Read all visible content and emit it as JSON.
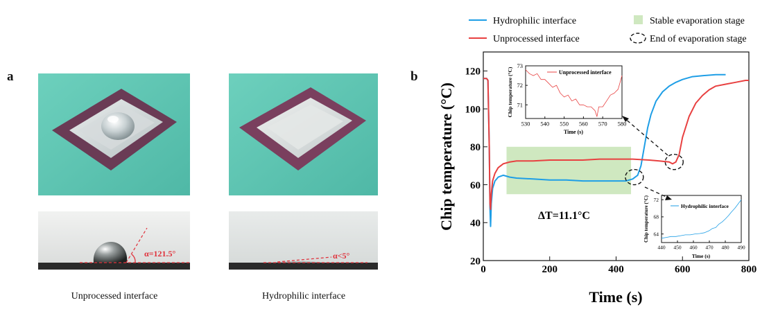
{
  "panel_a": {
    "letter": "a",
    "left_caption": "Unprocessed interface",
    "right_caption": "Hydrophilic interface",
    "left_angle_label": "α=121.5°",
    "right_angle_label": "α<5°",
    "colors": {
      "background_teal": "#5fc7b4",
      "chip_purple": "#6a3b55",
      "angle_red": "#e0303a"
    }
  },
  "panel_b": {
    "letter": "b",
    "delta_label": "ΔT=11.1°C",
    "colors": {
      "hydrophilic": "#1e9ee6",
      "unprocessed": "#e84040",
      "stable_fill": "#cfe8c0"
    }
  },
  "chart_data": [
    {
      "id": "main",
      "type": "line",
      "xlabel": "Time (s)",
      "ylabel": "Chip temperature (°C)",
      "xlim": [
        0,
        800
      ],
      "ylim": [
        20,
        130
      ],
      "xticks": [
        0,
        200,
        400,
        600,
        800
      ],
      "yticks": [
        20,
        40,
        60,
        80,
        100,
        120
      ],
      "legend": [
        {
          "label": "Hydrophilic interface",
          "kind": "line",
          "color": "#1e9ee6"
        },
        {
          "label": "Unprocessed interface",
          "kind": "line",
          "color": "#e84040"
        },
        {
          "label": "Stable evaporation stage",
          "kind": "patch",
          "color": "#cfe8c0"
        },
        {
          "label": "End of evaporation stage",
          "kind": "ellipse",
          "color": "#111111"
        }
      ],
      "stable_stage": {
        "x": [
          70,
          445
        ],
        "y": [
          55,
          80
        ]
      },
      "end_markers": [
        {
          "series": "Hydrophilic interface",
          "x": 455,
          "y": 64
        },
        {
          "series": "Unprocessed interface",
          "x": 575,
          "y": 72
        }
      ],
      "series": [
        {
          "name": "Hydrophilic interface",
          "color": "#1e9ee6",
          "x": [
            0,
            10,
            14,
            18,
            20,
            22,
            24,
            28,
            35,
            45,
            60,
            80,
            100,
            150,
            200,
            250,
            300,
            350,
            400,
            430,
            450,
            465,
            475,
            485,
            495,
            505,
            520,
            540,
            560,
            580,
            600,
            630,
            660,
            700,
            730
          ],
          "y": [
            116,
            116,
            115,
            80,
            48,
            38,
            50,
            58,
            62,
            64,
            65,
            64,
            63.5,
            63,
            62.5,
            62.5,
            62,
            62,
            62,
            62,
            63,
            65,
            70,
            80,
            90,
            97,
            104,
            109,
            112,
            114,
            115.5,
            117,
            117.5,
            118,
            118
          ]
        },
        {
          "name": "Unprocessed interface",
          "color": "#e84040",
          "x": [
            0,
            10,
            14,
            18,
            20,
            22,
            24,
            28,
            35,
            45,
            60,
            80,
            100,
            150,
            200,
            250,
            300,
            350,
            400,
            450,
            500,
            530,
            560,
            570,
            580,
            590,
            600,
            620,
            640,
            660,
            680,
            700,
            730,
            760,
            790,
            800
          ],
          "y": [
            116,
            116,
            115,
            80,
            50,
            47,
            55,
            62,
            66,
            69,
            71,
            72,
            72.5,
            72.5,
            73,
            73,
            73,
            73.5,
            73.5,
            73.5,
            73,
            72.5,
            72,
            71,
            72,
            76,
            85,
            96,
            103,
            107,
            110,
            112,
            113,
            114,
            115,
            115
          ]
        }
      ]
    },
    {
      "id": "inset-unprocessed",
      "type": "line",
      "xlabel": "Time (s)",
      "ylabel": "Chip temperature (°C)",
      "xlim": [
        530,
        580
      ],
      "ylim": [
        70.3,
        73
      ],
      "xticks": [
        530,
        540,
        550,
        560,
        570,
        580
      ],
      "yticks": [
        71,
        72,
        73
      ],
      "legend": [
        {
          "label": "Unprocessed interface",
          "color": "#e84040"
        }
      ],
      "series": [
        {
          "name": "Unprocessed interface",
          "color": "#e84040",
          "x": [
            530,
            532,
            534,
            536,
            538,
            540,
            542,
            544,
            546,
            548,
            550,
            552,
            554,
            556,
            558,
            560,
            562,
            564,
            566,
            567,
            568,
            570,
            572,
            574,
            576,
            578,
            580
          ],
          "y": [
            72.8,
            72.6,
            72.5,
            72.6,
            72.3,
            72.3,
            72.1,
            71.9,
            72.0,
            71.6,
            71.4,
            71.5,
            71.2,
            71.3,
            71.0,
            71.0,
            70.9,
            70.9,
            70.7,
            70.4,
            70.9,
            70.9,
            71.2,
            71.5,
            71.6,
            71.8,
            72.5
          ]
        }
      ]
    },
    {
      "id": "inset-hydrophilic",
      "type": "line",
      "xlabel": "Time (s)",
      "ylabel": "Chip temperature (°C)",
      "xlim": [
        440,
        490
      ],
      "ylim": [
        62,
        73
      ],
      "xticks": [
        440,
        450,
        460,
        470,
        480,
        490
      ],
      "yticks": [
        64,
        68,
        72
      ],
      "legend": [
        {
          "label": "Hydrophilic interface",
          "color": "#1e9ee6"
        }
      ],
      "series": [
        {
          "name": "Hydrophilic interface",
          "color": "#1e9ee6",
          "x": [
            440,
            443,
            446,
            449,
            452,
            455,
            458,
            461,
            464,
            467,
            470,
            472,
            474,
            476,
            478,
            480,
            482,
            484,
            486,
            488,
            490
          ],
          "y": [
            63.0,
            63.2,
            63.4,
            63.4,
            63.6,
            63.8,
            63.8,
            64.0,
            64.1,
            64.3,
            64.8,
            65.3,
            65.5,
            66.3,
            66.8,
            67.5,
            68.3,
            69.2,
            70.0,
            71.0,
            72.0
          ]
        }
      ]
    }
  ]
}
